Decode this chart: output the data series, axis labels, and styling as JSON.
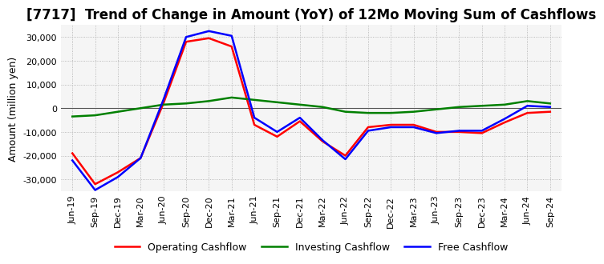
{
  "title": "[7717]  Trend of Change in Amount (YoY) of 12Mo Moving Sum of Cashflows",
  "ylabel": "Amount (million yen)",
  "ylim": [
    -35000,
    35000
  ],
  "yticks": [
    -30000,
    -20000,
    -10000,
    0,
    10000,
    20000,
    30000
  ],
  "x_labels": [
    "Jun-19",
    "Sep-19",
    "Dec-19",
    "Mar-20",
    "Jun-20",
    "Sep-20",
    "Dec-20",
    "Mar-21",
    "Jun-21",
    "Sep-21",
    "Dec-21",
    "Mar-22",
    "Jun-22",
    "Sep-22",
    "Dec-22",
    "Mar-23",
    "Jun-23",
    "Sep-23",
    "Dec-23",
    "Mar-24",
    "Jun-24",
    "Sep-24"
  ],
  "operating": [
    -19000,
    -32000,
    -27000,
    -21000,
    2000,
    28000,
    29500,
    26000,
    -7000,
    -12000,
    -5500,
    -14000,
    -20000,
    -8000,
    -7000,
    -7000,
    -10000,
    -10000,
    -10500,
    -6000,
    -2000,
    -1500
  ],
  "investing": [
    -3500,
    -3000,
    -1500,
    0,
    1500,
    2000,
    3000,
    4500,
    3500,
    2500,
    1500,
    500,
    -1500,
    -2000,
    -2000,
    -1500,
    -500,
    500,
    1000,
    1500,
    3000,
    2000
  ],
  "free": [
    -22000,
    -34500,
    -29000,
    -21000,
    3500,
    30000,
    32500,
    30500,
    -4000,
    -10000,
    -4000,
    -13500,
    -21500,
    -9500,
    -8000,
    -8000,
    -10500,
    -9500,
    -9500,
    -4500,
    1000,
    500
  ],
  "operating_color": "#ff0000",
  "investing_color": "#008000",
  "free_color": "#0000ff",
  "background_color": "#ffffff",
  "plot_bg_color": "#f5f5f5",
  "grid_color": "#aaaaaa",
  "zero_line_color": "#555555",
  "title_fontsize": 12,
  "label_fontsize": 9,
  "tick_fontsize": 8,
  "line_width": 1.8
}
